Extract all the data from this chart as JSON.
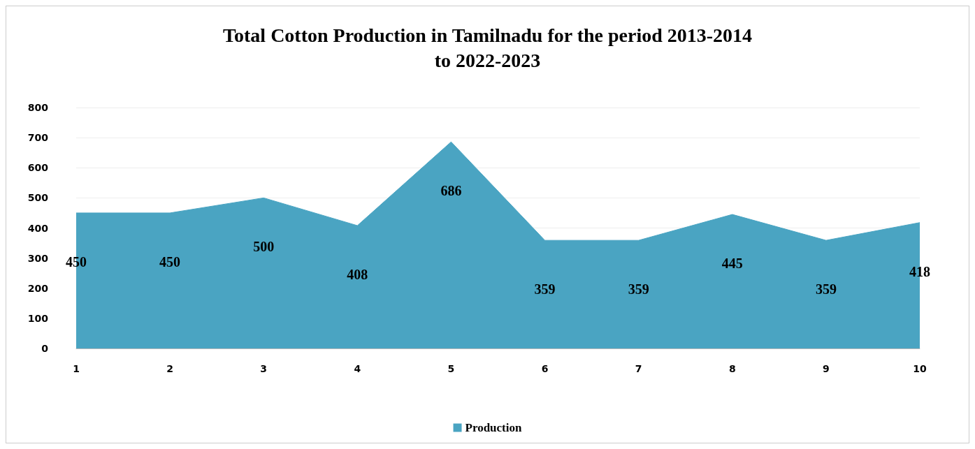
{
  "chart_data": {
    "type": "area",
    "title": "Total Cotton Production in Tamilnadu for the period 2013-2014\nto 2022-2023",
    "categories": [
      "1",
      "2",
      "3",
      "4",
      "5",
      "6",
      "7",
      "8",
      "9",
      "10"
    ],
    "series": [
      {
        "name": "Production",
        "color": "#4aa4c2",
        "values": [
          450,
          450,
          500,
          408,
          686,
          359,
          359,
          445,
          359,
          418
        ]
      }
    ],
    "ylim": [
      0,
      800
    ],
    "yticks": [
      0,
      100,
      200,
      300,
      400,
      500,
      600,
      700,
      800
    ],
    "grid": "y",
    "legend": "bottom",
    "data_labels": true,
    "marker": "none"
  }
}
